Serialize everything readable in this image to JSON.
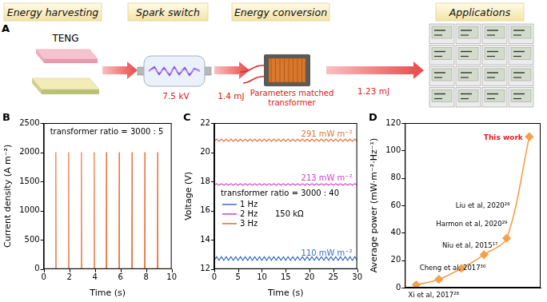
{
  "figure": {
    "panel_label": "A",
    "stages": [
      "Energy harvesting",
      "Spark switch",
      "Energy conversion",
      "Applications"
    ],
    "device_label": "TENG",
    "voltage": "7.5 kV",
    "energy_in": "1.4 mJ",
    "transformer_label": [
      "Parameters matched",
      "transformer"
    ],
    "energy_out": "1.23 mJ"
  },
  "chart_data": [
    {
      "panel_label": "B",
      "type": "line",
      "x_label": "Time (s)",
      "y_label": "Current density (A m⁻²)",
      "annotations": [
        "transformer ratio = 3000 : 5"
      ],
      "color": "#e8743b",
      "x": [
        0,
        0.93,
        0.95,
        0.97,
        1.93,
        1.95,
        1.97,
        2.93,
        2.95,
        2.97,
        3.93,
        3.95,
        3.97,
        4.88,
        4.9,
        4.92,
        5.88,
        5.9,
        5.92,
        6.88,
        6.9,
        6.92,
        7.88,
        7.9,
        7.92,
        8.88,
        8.9,
        8.92,
        10
      ],
      "values": [
        0,
        0,
        2000,
        0,
        0,
        2000,
        0,
        0,
        2000,
        0,
        0,
        2000,
        0,
        0,
        2000,
        0,
        0,
        2000,
        0,
        0,
        2000,
        0,
        0,
        2000,
        0,
        0,
        2000,
        0,
        0
      ],
      "xlim": [
        0,
        10
      ],
      "xticks": [
        0,
        2,
        4,
        6,
        8,
        10
      ],
      "ylim": [
        0,
        2500
      ],
      "yticks": [
        0,
        500,
        1000,
        1500,
        2000,
        2500
      ],
      "grid": false
    },
    {
      "panel_label": "C",
      "type": "line",
      "x_label": "Time (s)",
      "y_label": "Voltage (V)",
      "annotations": [
        "transformer ratio = 3000 : 40",
        "150 kΩ"
      ],
      "legend": "left",
      "x": [
        0,
        0.5,
        1,
        1.5,
        2,
        2.5,
        3,
        3.5,
        4,
        4.5,
        5,
        5.5,
        6,
        6.5,
        7,
        7.5,
        8,
        8.5,
        9,
        9.5,
        10,
        10.5,
        11,
        11.5,
        12,
        12.5,
        13,
        13.5,
        14,
        14.5,
        15,
        15.5,
        16,
        16.5,
        17,
        17.5,
        18,
        18.5,
        19,
        19.5,
        20,
        20.5,
        21,
        21.5,
        22,
        22.5,
        23,
        23.5,
        24,
        24.5,
        25,
        25.5,
        26,
        26.5,
        27,
        27.5,
        28,
        28.5,
        29,
        29.5,
        30
      ],
      "series": [
        {
          "name": "1 Hz",
          "color": "#3a6fc4",
          "label": "110 mW m⁻²",
          "values": [
            12.6,
            12.85,
            12.6,
            12.85,
            12.6,
            12.85,
            12.6,
            12.85,
            12.6,
            12.85,
            12.6,
            12.85,
            12.6,
            12.85,
            12.6,
            12.85,
            12.6,
            12.85,
            12.6,
            12.85,
            12.6,
            12.85,
            12.6,
            12.85,
            12.6,
            12.85,
            12.6,
            12.85,
            12.6,
            12.85,
            12.6,
            12.85,
            12.6,
            12.85,
            12.6,
            12.85,
            12.6,
            12.85,
            12.6,
            12.85,
            12.6,
            12.85,
            12.6,
            12.85,
            12.6,
            12.85,
            12.6,
            12.85,
            12.6,
            12.85,
            12.6,
            12.85,
            12.6,
            12.85,
            12.6,
            12.85,
            12.6,
            12.85,
            12.6,
            12.85,
            12.6
          ]
        },
        {
          "name": "2 Hz",
          "color": "#d040c8",
          "label": "213 mW m⁻²",
          "values": [
            17.75,
            17.85,
            17.75,
            17.85,
            17.75,
            17.85,
            17.75,
            17.85,
            17.75,
            17.85,
            17.75,
            17.85,
            17.75,
            17.85,
            17.75,
            17.85,
            17.75,
            17.85,
            17.75,
            17.85,
            17.75,
            17.85,
            17.75,
            17.85,
            17.75,
            17.85,
            17.75,
            17.85,
            17.75,
            17.85,
            17.75,
            17.85,
            17.75,
            17.85,
            17.75,
            17.85,
            17.75,
            17.85,
            17.75,
            17.85,
            17.75,
            17.85,
            17.75,
            17.85,
            17.75,
            17.85,
            17.75,
            17.85,
            17.75,
            17.85,
            17.75,
            17.85,
            17.75,
            17.85,
            17.75,
            17.85,
            17.75,
            17.85,
            17.75,
            17.85,
            17.75
          ]
        },
        {
          "name": "3 Hz",
          "color": "#e0703a",
          "label": "291 mW m⁻²",
          "values": [
            20.75,
            20.9,
            20.75,
            20.9,
            20.75,
            20.9,
            20.75,
            20.9,
            20.75,
            20.9,
            20.75,
            20.9,
            20.75,
            20.9,
            20.75,
            20.9,
            20.75,
            20.9,
            20.75,
            20.9,
            20.75,
            20.9,
            20.75,
            20.9,
            20.75,
            20.9,
            20.75,
            20.9,
            20.75,
            20.9,
            20.75,
            20.9,
            20.75,
            20.9,
            20.75,
            20.9,
            20.75,
            20.9,
            20.75,
            20.9,
            20.75,
            20.9,
            20.75,
            20.9,
            20.75,
            20.9,
            20.75,
            20.9,
            20.75,
            20.9,
            20.75,
            20.9,
            20.75,
            20.9,
            20.75,
            20.9,
            20.75,
            20.9,
            20.75,
            20.9,
            20.75
          ]
        }
      ],
      "xlim": [
        0,
        30
      ],
      "xticks": [
        0,
        5,
        10,
        15,
        20,
        25,
        30
      ],
      "ylim": [
        12,
        22
      ],
      "yticks": [
        12,
        14,
        16,
        18,
        20,
        22
      ],
      "grid": false
    },
    {
      "panel_label": "D",
      "type": "line",
      "y_label": "Average power (mW·m⁻²·Hz⁻¹)",
      "marker": "diamond",
      "color": "#f5a04a",
      "categories": [
        "Xi et al, 2017²⁸",
        "Cheng et al, 2017³⁰",
        "Niu et al, 2015¹⁷",
        "Harmon et al, 2020²⁹",
        "Liu et al, 2020²⁶",
        "This work"
      ],
      "values": [
        2,
        6,
        14,
        24,
        36,
        110
      ],
      "ylim": [
        0,
        120
      ],
      "yticks": [
        0,
        20,
        40,
        60,
        80,
        100,
        120
      ],
      "tick_labels": "y",
      "grid": false
    }
  ]
}
